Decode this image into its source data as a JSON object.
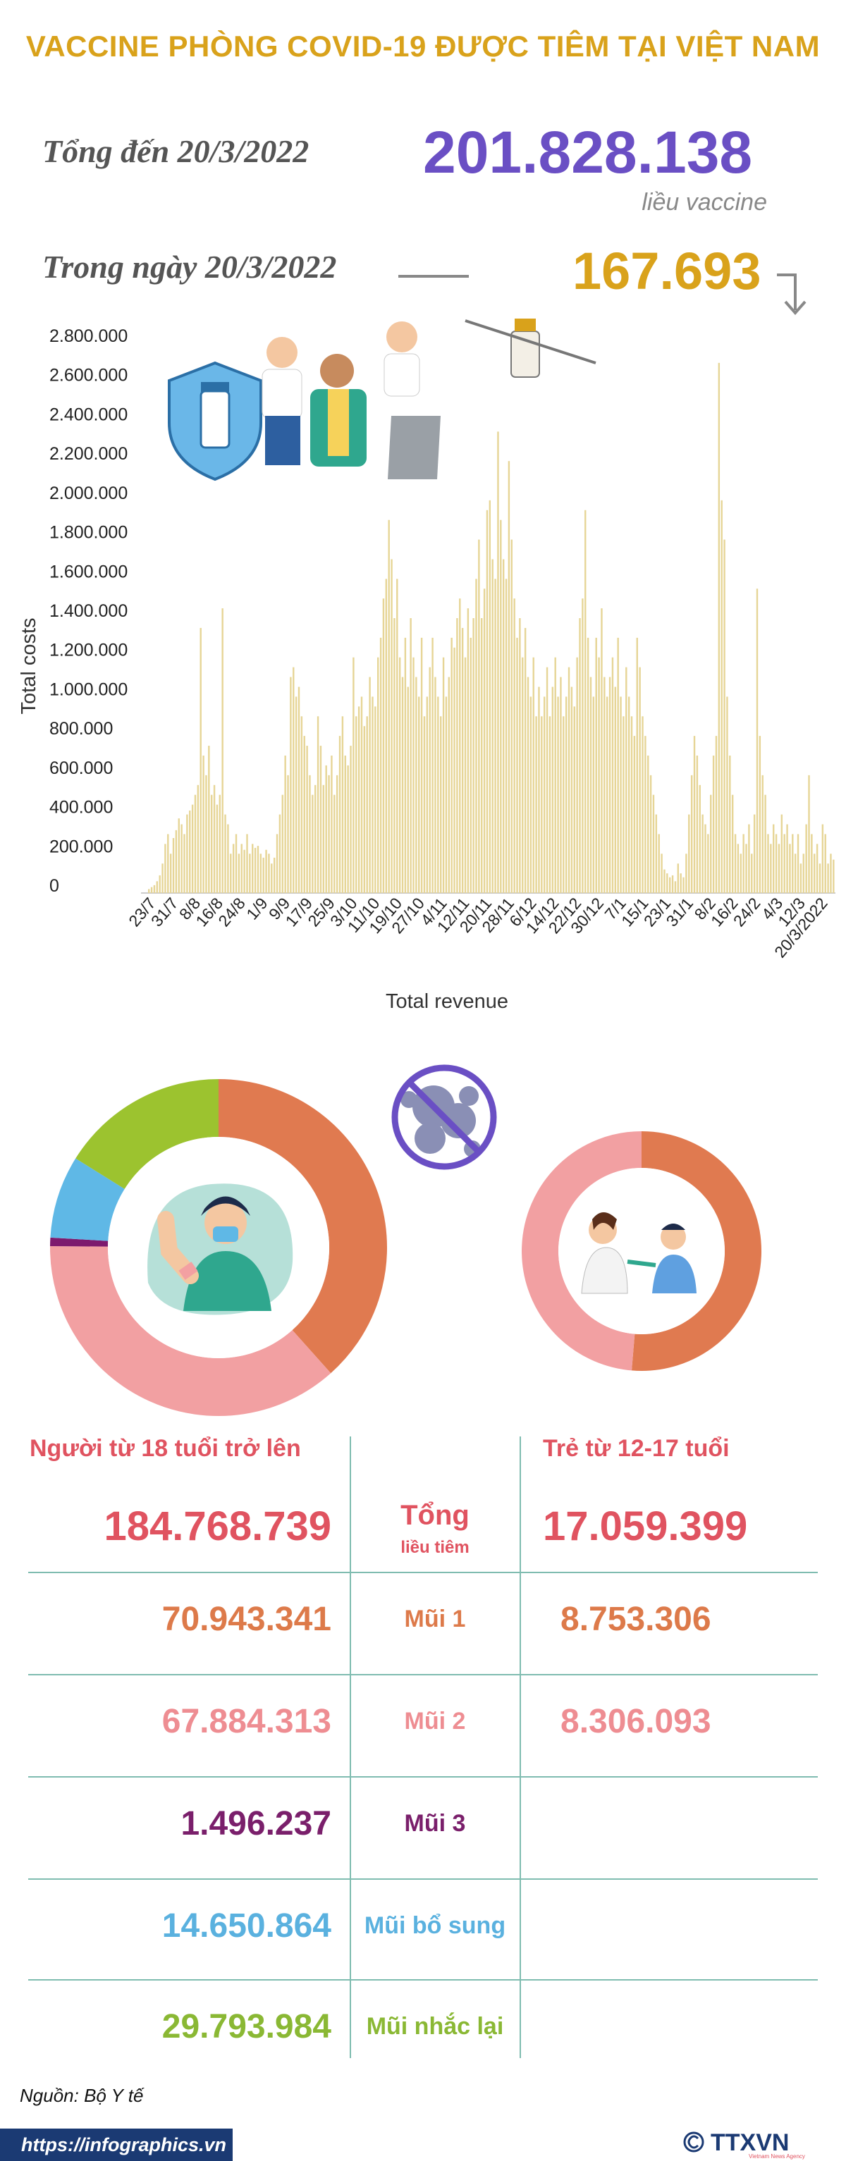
{
  "title": "VACCINE PHÒNG COVID-19 ĐƯỢC TIÊM TẠI VIỆT NAM",
  "summary": {
    "total_label": "Tổng đến 20/3/2022",
    "total_value": "201.828.138",
    "unit": "liều vaccine",
    "daily_label": "Trong ngày 20/3/2022",
    "daily_value": "167.693",
    "trend_icon": "arrow-down-icon"
  },
  "chart_data": {
    "type": "bar",
    "ylabel": "Total costs",
    "xlabel": "Total revenue",
    "ylim": [
      0,
      2800000
    ],
    "yticks": [
      "0",
      "200.000",
      "400.000",
      "600.000",
      "800.000",
      "1.000.000",
      "1.200.000",
      "1.400.000",
      "1.600.000",
      "1.800.000",
      "2.000.000",
      "2.200.000",
      "2.400.000",
      "2.600.000",
      "2.800.000"
    ],
    "xticks": [
      "23/7",
      "31/7",
      "8/8",
      "16/8",
      "24/8",
      "1/9",
      "9/9",
      "17/9",
      "25/9",
      "3/10",
      "11/10",
      "19/10",
      "27/10",
      "4/11",
      "12/11",
      "20/11",
      "28/11",
      "6/12",
      "14/12",
      "22/12",
      "30/12",
      "7/1",
      "15/1",
      "23/1",
      "31/1",
      "8/2",
      "16/2",
      "24/2",
      "4/3",
      "12/3",
      "20/3/2022"
    ],
    "bar_color": "#e6d596",
    "values": [
      20000,
      30000,
      40000,
      60000,
      90000,
      150000,
      250000,
      300000,
      200000,
      280000,
      320000,
      380000,
      350000,
      300000,
      400000,
      420000,
      450000,
      500000,
      550000,
      1350000,
      700000,
      600000,
      750000,
      500000,
      550000,
      450000,
      500000,
      1450000,
      400000,
      350000,
      200000,
      250000,
      300000,
      200000,
      250000,
      220000,
      300000,
      200000,
      250000,
      230000,
      240000,
      200000,
      180000,
      220000,
      200000,
      150000,
      180000,
      300000,
      400000,
      500000,
      700000,
      600000,
      1100000,
      1150000,
      1000000,
      1050000,
      900000,
      800000,
      750000,
      600000,
      500000,
      550000,
      900000,
      750000,
      550000,
      650000,
      600000,
      700000,
      500000,
      600000,
      800000,
      900000,
      700000,
      650000,
      750000,
      1200000,
      900000,
      950000,
      1000000,
      850000,
      900000,
      1100000,
      1000000,
      950000,
      1200000,
      1300000,
      1500000,
      1600000,
      1900000,
      1700000,
      1400000,
      1600000,
      1200000,
      1100000,
      1300000,
      1050000,
      1400000,
      1200000,
      1100000,
      1000000,
      1300000,
      900000,
      1000000,
      1150000,
      1300000,
      1100000,
      1000000,
      900000,
      1200000,
      1000000,
      1100000,
      1300000,
      1250000,
      1400000,
      1500000,
      1350000,
      1200000,
      1450000,
      1300000,
      1400000,
      1600000,
      1800000,
      1400000,
      1550000,
      1950000,
      2000000,
      1700000,
      1600000,
      2350000,
      1900000,
      1700000,
      1600000,
      2200000,
      1800000,
      1500000,
      1300000,
      1400000,
      1200000,
      1350000,
      1100000,
      1000000,
      1200000,
      900000,
      1050000,
      900000,
      1000000,
      1150000,
      900000,
      1050000,
      1200000,
      1000000,
      1100000,
      900000,
      1000000,
      1150000,
      1050000,
      950000,
      1200000,
      1400000,
      1500000,
      1950000,
      1300000,
      1100000,
      1000000,
      1300000,
      1200000,
      1450000,
      1100000,
      1000000,
      1100000,
      1200000,
      1050000,
      1300000,
      1000000,
      900000,
      1150000,
      1000000,
      900000,
      800000,
      1300000,
      1150000,
      900000,
      800000,
      700000,
      600000,
      500000,
      400000,
      300000,
      200000,
      120000,
      100000,
      80000,
      90000,
      60000,
      150000,
      100000,
      80000,
      200000,
      400000,
      600000,
      800000,
      700000,
      550000,
      400000,
      350000,
      300000,
      500000,
      700000,
      800000,
      2700000,
      2000000,
      1800000,
      1000000,
      700000,
      500000,
      300000,
      250000,
      200000,
      300000,
      250000,
      350000,
      200000,
      400000,
      1550000,
      800000,
      600000,
      500000,
      300000,
      250000,
      350000,
      300000,
      250000,
      400000,
      300000,
      350000,
      250000,
      300000,
      200000,
      300000,
      150000,
      200000,
      350000,
      600000,
      300000,
      200000,
      250000,
      150000,
      350000,
      300000,
      150000,
      200000,
      170000
    ]
  },
  "donuts": {
    "adult": {
      "total": 184768739,
      "segments": [
        {
          "name": "Mũi 1",
          "value": 70943341,
          "color": "#e07a50"
        },
        {
          "name": "Mũi 2",
          "value": 67884313,
          "color": "#f2a0a2"
        },
        {
          "name": "Mũi 3",
          "value": 1496237,
          "color": "#7d1a6e"
        },
        {
          "name": "Mũi bổ sung",
          "value": 14650864,
          "color": "#5fb8e6"
        },
        {
          "name": "Mũi nhắc lại",
          "value": 29793984,
          "color": "#9cc32f"
        }
      ]
    },
    "child": {
      "total": 17059399,
      "segments": [
        {
          "name": "Mũi 1",
          "value": 8753306,
          "color": "#e07a50"
        },
        {
          "name": "Mũi 2",
          "value": 8306093,
          "color": "#f2a0a2"
        }
      ]
    }
  },
  "table": {
    "col_adult": "Người từ 18 tuổi trở lên",
    "col_child": "Trẻ từ 12-17 tuổi",
    "total": {
      "label": "Tổng",
      "sublabel": "liều tiêm",
      "adult": "184.768.739",
      "child": "17.059.399"
    },
    "rows": [
      {
        "label": "Mũi 1",
        "adult": "70.943.341",
        "child": "8.753.306",
        "color": "#dd7a4a"
      },
      {
        "label": "Mũi 2",
        "adult": "67.884.313",
        "child": "8.306.093",
        "color": "#ee8d92"
      },
      {
        "label": "Mũi 3",
        "adult": "1.496.237",
        "child": "",
        "color": "#7a1f6b"
      },
      {
        "label": "Mũi bổ sung",
        "adult": "14.650.864",
        "child": "",
        "color": "#5ab1df"
      },
      {
        "label": "Mũi nhắc lại",
        "adult": "29.793.984",
        "child": "",
        "color": "#8ab834"
      }
    ]
  },
  "footer": {
    "source": "Nguồn: Bộ Y tế",
    "url": "https://infographics.vn",
    "logo_text": "TTXVN",
    "logo_sub": "Vietnam News Agency",
    "copyright_icon": "copyright-icon"
  }
}
